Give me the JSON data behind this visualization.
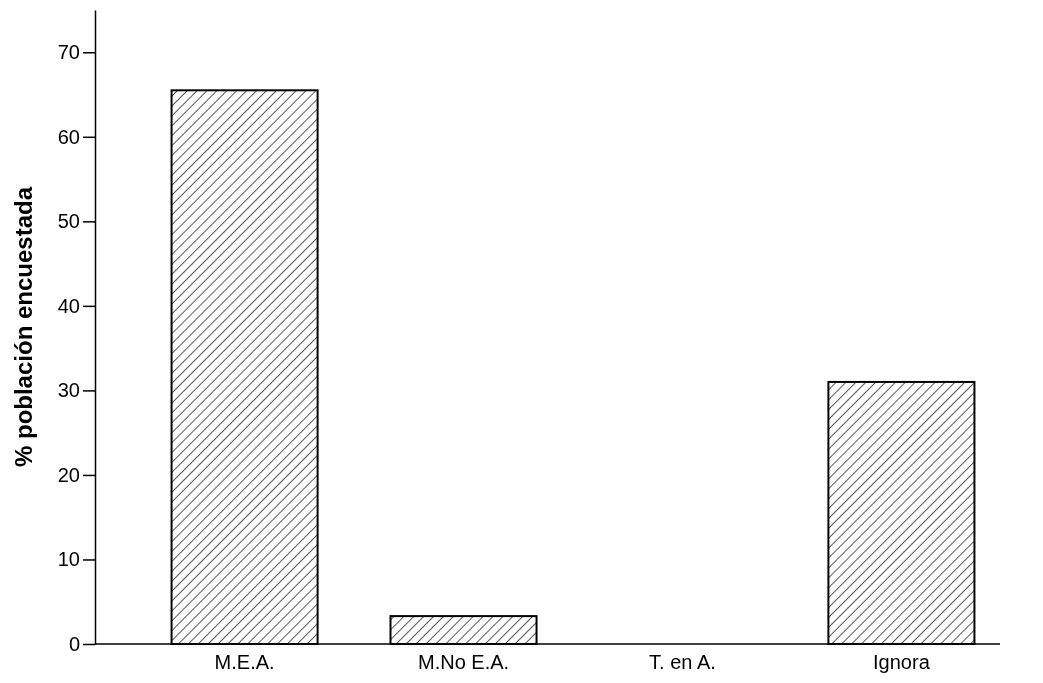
{
  "chart_data": {
    "type": "bar",
    "ylabel": "% población encuestada",
    "categories": [
      "M.E.A.",
      "M.No E.A.",
      "T. en A.",
      "Ignora"
    ],
    "values": [
      65.5,
      3.3,
      0,
      31.0
    ],
    "color": "#000000",
    "ylim": [
      0,
      75
    ],
    "yticks": [
      0,
      10,
      20,
      30,
      40,
      50,
      60,
      70
    ],
    "grid": false
  }
}
